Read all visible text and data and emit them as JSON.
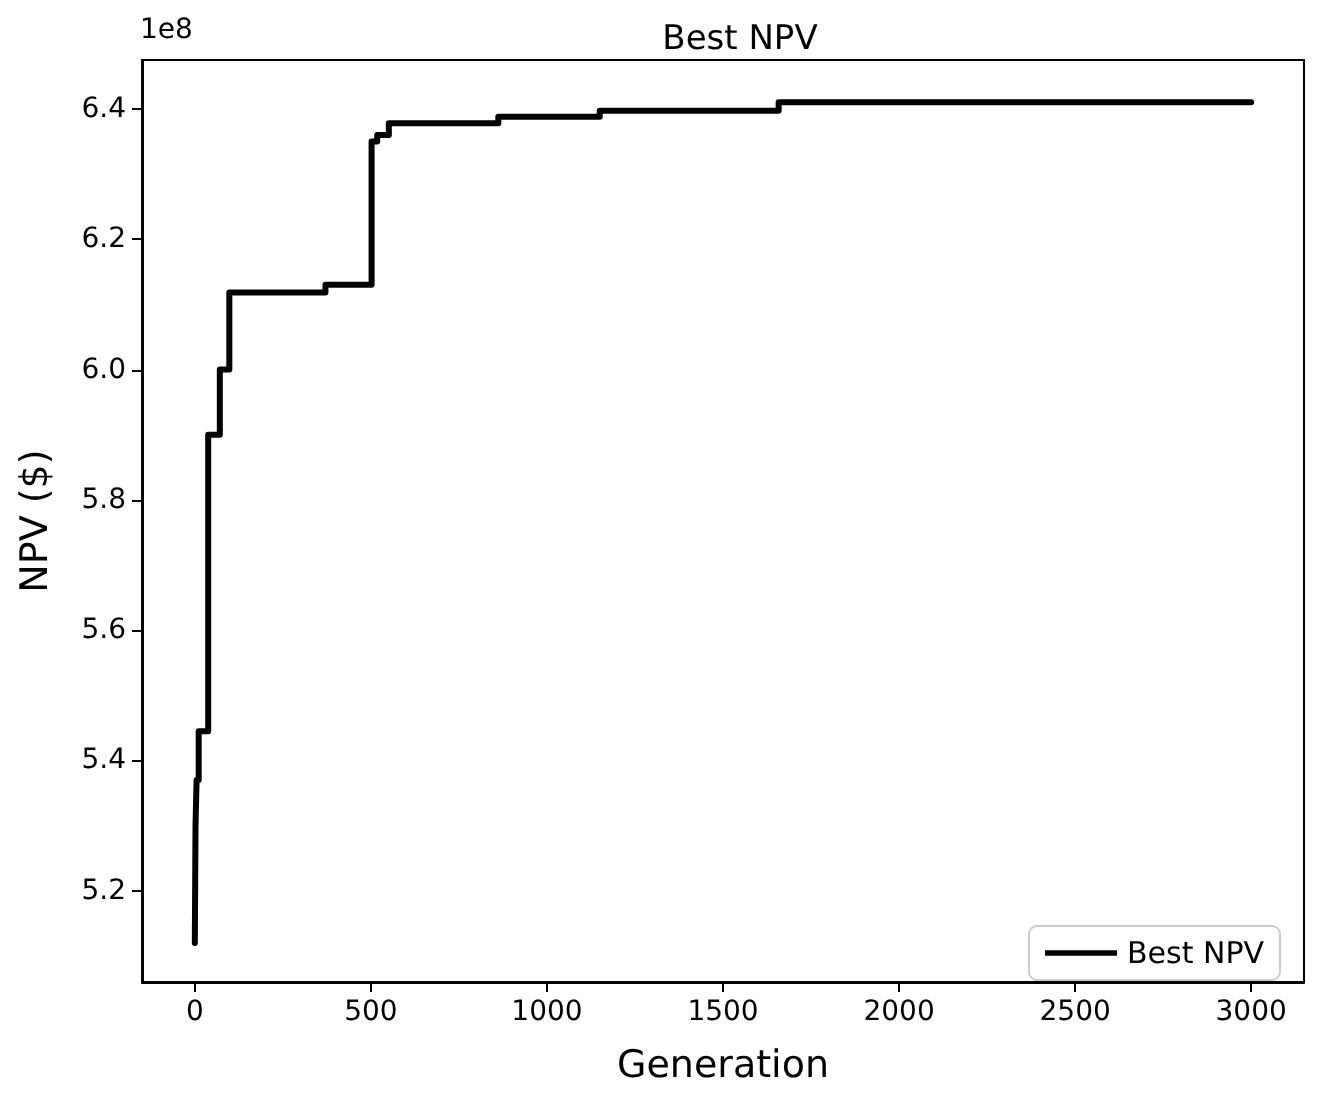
{
  "chart_data": {
    "type": "step",
    "title": "Best NPV",
    "xlabel": "Generation",
    "ylabel": "NPV ($)",
    "annotations": [
      "1e8"
    ],
    "x": [
      0,
      2,
      5,
      11,
      38,
      71,
      98,
      371,
      502,
      518,
      551,
      862,
      1150,
      1658,
      3000
    ],
    "series": [
      {
        "name": "Best NPV",
        "color": "#000000",
        "values": [
          5.12,
          5.3,
          5.37,
          5.445,
          5.9,
          6.0,
          6.118,
          6.13,
          6.35,
          6.36,
          6.378,
          6.388,
          6.397,
          6.41,
          6.41
        ]
      }
    ],
    "xlim": [
      -150,
      3150
    ],
    "xticks": [
      0,
      500,
      1000,
      1500,
      2000,
      2500,
      3000
    ],
    "ylim": [
      5.06,
      6.475
    ],
    "yticks": [
      5.2,
      5.4,
      5.6,
      5.8,
      {
        "value": 6,
        "label": "6.0"
      },
      6.2,
      6.4
    ],
    "grid": false,
    "legend": "bottom right",
    "marker": "none",
    "line_style": "solid"
  }
}
